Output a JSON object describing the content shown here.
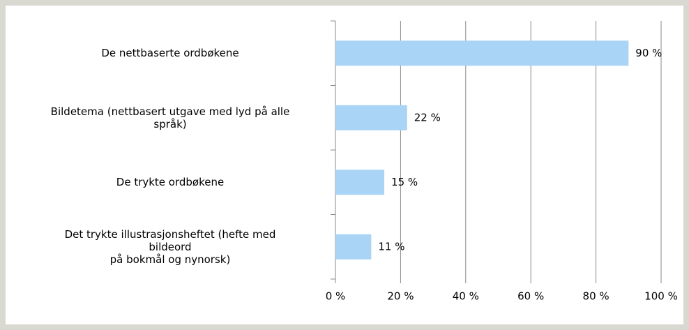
{
  "chart_data": {
    "type": "bar",
    "orientation": "horizontal",
    "categories": [
      "De nettbaserte ordbøkene",
      "Bildetema (nettbasert utgave med lyd på alle\nspråk)",
      "De trykte ordbøkene",
      "Det trykte illustrasjonsheftet (hefte med\nbildeord\npå bokmål og nynorsk)"
    ],
    "values": [
      90,
      22,
      15,
      11
    ],
    "value_labels": [
      "90 %",
      "22 %",
      "15 %",
      "11 %"
    ],
    "color": "#a9d4f5",
    "xlim": [
      0,
      100
    ],
    "xticks": [
      {
        "value": 0,
        "label": "0 %"
      },
      {
        "value": 20,
        "label": "20 %"
      },
      {
        "value": 40,
        "label": "40 %"
      },
      {
        "value": 60,
        "label": "60 %"
      },
      {
        "value": 80,
        "label": "80 %"
      },
      {
        "value": 100,
        "label": "100 %"
      }
    ],
    "grid": true
  }
}
